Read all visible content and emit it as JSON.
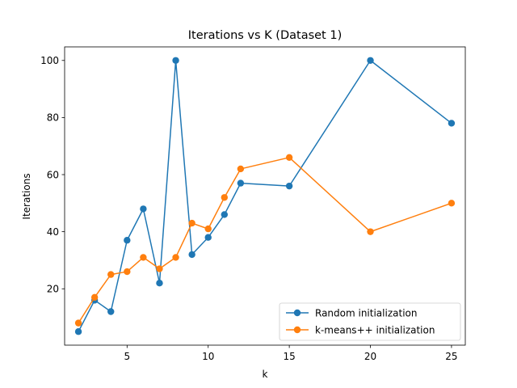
{
  "chart_data": {
    "type": "line",
    "title": "Iterations vs K (Dataset 1)",
    "xlabel": "k",
    "ylabel": "Iterations",
    "xlim": [
      1.15,
      25.85
    ],
    "ylim": [
      0.25,
      104.75
    ],
    "xticks": [
      5,
      10,
      15,
      20,
      25
    ],
    "yticks": [
      20,
      40,
      60,
      80,
      100
    ],
    "grid": false,
    "legend_position": "lower-right",
    "series": [
      {
        "name": "Random initialization",
        "color": "#1f77b4",
        "x": [
          2,
          3,
          4,
          5,
          6,
          7,
          8,
          9,
          10,
          11,
          12,
          15,
          20,
          25
        ],
        "y": [
          5,
          16,
          12,
          37,
          48,
          22,
          100,
          32,
          38,
          46,
          57,
          56,
          100,
          78
        ]
      },
      {
        "name": "k-means++ initialization",
        "color": "#ff7f0e",
        "x": [
          2,
          3,
          4,
          5,
          6,
          7,
          8,
          9,
          10,
          11,
          12,
          15,
          20,
          25
        ],
        "y": [
          8,
          17,
          25,
          26,
          31,
          27,
          31,
          43,
          41,
          52,
          62,
          66,
          40,
          50
        ]
      }
    ]
  }
}
